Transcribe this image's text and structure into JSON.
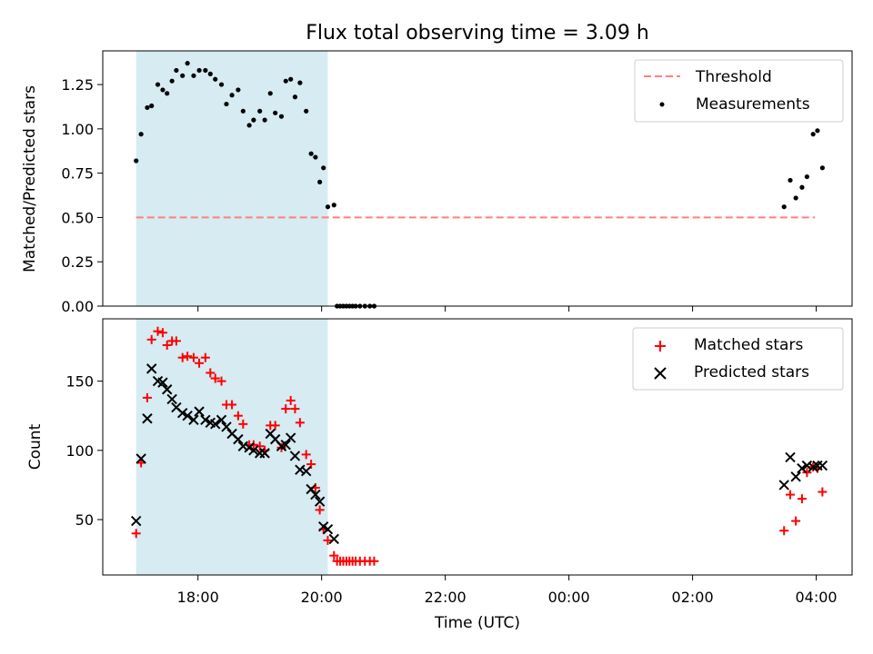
{
  "title": "Flux total observing time = 3.09 h",
  "chart_data": [
    {
      "type": "scatter",
      "panel": "top",
      "ylabel": "Matched/Predicted stars",
      "xlabel": "",
      "x_unit": "hours since 00:00 UTC of first day",
      "xlim": [
        16.46,
        28.58
      ],
      "ylim": [
        0,
        1.44
      ],
      "yticks": [
        0.0,
        0.25,
        0.5,
        0.75,
        1.0,
        1.25
      ],
      "ytick_labels": [
        "0.00",
        "0.25",
        "0.50",
        "0.75",
        "1.00",
        "1.25"
      ],
      "shaded_span": {
        "x0": 17.0,
        "x1": 20.1,
        "color": "#add8e6"
      },
      "threshold": {
        "name": "Threshold",
        "value": 0.5,
        "x0": 17.0,
        "x1": 27.98,
        "color": "#ff7f7f",
        "style": "dashed"
      },
      "legend": [
        "Threshold",
        "Measurements"
      ],
      "legend_loc": "upper right",
      "series": [
        {
          "name": "Measurements",
          "marker": "dot",
          "color": "#000000",
          "x": [
            17.0,
            17.08,
            17.18,
            17.25,
            17.35,
            17.43,
            17.5,
            17.58,
            17.65,
            17.75,
            17.83,
            17.93,
            18.02,
            18.12,
            18.2,
            18.28,
            18.38,
            18.46,
            18.55,
            18.65,
            18.73,
            18.83,
            18.9,
            19.0,
            19.08,
            19.17,
            19.25,
            19.35,
            19.42,
            19.5,
            19.57,
            19.65,
            19.75,
            19.83,
            19.9,
            19.97,
            20.03,
            20.1,
            20.2,
            20.25,
            20.3,
            20.35,
            20.4,
            20.45,
            20.5,
            20.55,
            20.62,
            20.7,
            20.78,
            20.85,
            27.48,
            27.58,
            27.67,
            27.77,
            27.85,
            27.95,
            28.02,
            28.1
          ],
          "y": [
            0.82,
            0.97,
            1.12,
            1.13,
            1.25,
            1.22,
            1.2,
            1.27,
            1.33,
            1.3,
            1.37,
            1.3,
            1.33,
            1.33,
            1.31,
            1.28,
            1.25,
            1.14,
            1.19,
            1.22,
            1.1,
            1.02,
            1.05,
            1.1,
            1.05,
            1.2,
            1.09,
            1.07,
            1.27,
            1.28,
            1.18,
            1.26,
            1.1,
            0.86,
            0.84,
            0.7,
            0.78,
            0.56,
            0.57,
            0.0,
            0.0,
            0.0,
            0.0,
            0.0,
            0.0,
            0.0,
            0.0,
            0.0,
            0.0,
            0.0,
            0.56,
            0.71,
            0.61,
            0.67,
            0.73,
            0.97,
            0.99,
            0.78
          ]
        }
      ]
    },
    {
      "type": "scatter",
      "panel": "bottom",
      "ylabel": "Count",
      "xlabel": "Time (UTC)",
      "x_unit": "hours since 00:00 UTC of first day",
      "xlim": [
        16.46,
        28.58
      ],
      "ylim": [
        10,
        195
      ],
      "yticks": [
        50,
        100,
        150
      ],
      "ytick_labels": [
        "50",
        "100",
        "150"
      ],
      "xticks": [
        18,
        20,
        22,
        24,
        26,
        28
      ],
      "xtick_labels": [
        "18:00",
        "20:00",
        "22:00",
        "00:00",
        "02:00",
        "04:00"
      ],
      "shaded_span": {
        "x0": 17.0,
        "x1": 20.1,
        "color": "#add8e6"
      },
      "legend": [
        "Matched stars",
        "Predicted stars"
      ],
      "legend_loc": "upper right",
      "series": [
        {
          "name": "Matched stars",
          "marker": "plus",
          "color": "#ff0000",
          "x": [
            17.0,
            17.08,
            17.18,
            17.25,
            17.35,
            17.43,
            17.5,
            17.58,
            17.65,
            17.75,
            17.83,
            17.93,
            18.02,
            18.12,
            18.2,
            18.28,
            18.38,
            18.46,
            18.55,
            18.65,
            18.73,
            18.83,
            18.9,
            19.0,
            19.08,
            19.17,
            19.25,
            19.35,
            19.42,
            19.5,
            19.57,
            19.65,
            19.75,
            19.83,
            19.9,
            19.97,
            20.03,
            20.1,
            20.2,
            20.25,
            20.3,
            20.35,
            20.4,
            20.45,
            20.5,
            20.55,
            20.62,
            20.7,
            20.78,
            20.85,
            27.48,
            27.58,
            27.67,
            27.77,
            27.85,
            27.95,
            28.02,
            28.1
          ],
          "y": [
            40,
            91,
            138,
            180,
            186,
            185,
            176,
            179,
            179,
            167,
            168,
            167,
            163,
            167,
            156,
            152,
            150,
            133,
            133,
            125,
            119,
            104,
            104,
            103,
            100,
            118,
            118,
            102,
            130,
            136,
            130,
            120,
            97,
            90,
            73,
            57,
            43,
            35,
            24,
            20,
            20,
            20,
            20,
            20,
            20,
            20,
            20,
            20,
            20,
            20,
            42,
            68,
            49,
            65,
            84,
            88,
            87,
            70
          ]
        },
        {
          "name": "Predicted stars",
          "marker": "x",
          "color": "#000000",
          "x": [
            17.0,
            17.08,
            17.18,
            17.25,
            17.35,
            17.43,
            17.5,
            17.58,
            17.65,
            17.75,
            17.83,
            17.93,
            18.02,
            18.12,
            18.2,
            18.28,
            18.38,
            18.46,
            18.55,
            18.65,
            18.73,
            18.83,
            18.9,
            19.0,
            19.08,
            19.17,
            19.25,
            19.35,
            19.42,
            19.5,
            19.57,
            19.65,
            19.75,
            19.83,
            19.9,
            19.97,
            20.03,
            20.1,
            20.2,
            27.48,
            27.58,
            27.67,
            27.77,
            27.85,
            27.95,
            28.02,
            28.1
          ],
          "y": [
            49,
            94,
            123,
            159,
            150,
            149,
            144,
            137,
            131,
            127,
            125,
            122,
            128,
            122,
            120,
            119,
            122,
            117,
            112,
            108,
            103,
            102,
            100,
            98,
            98,
            112,
            108,
            103,
            104,
            109,
            96,
            86,
            85,
            72,
            68,
            63,
            45,
            43,
            36,
            75,
            95,
            81,
            87,
            89,
            88,
            89,
            89
          ]
        }
      ]
    }
  ]
}
